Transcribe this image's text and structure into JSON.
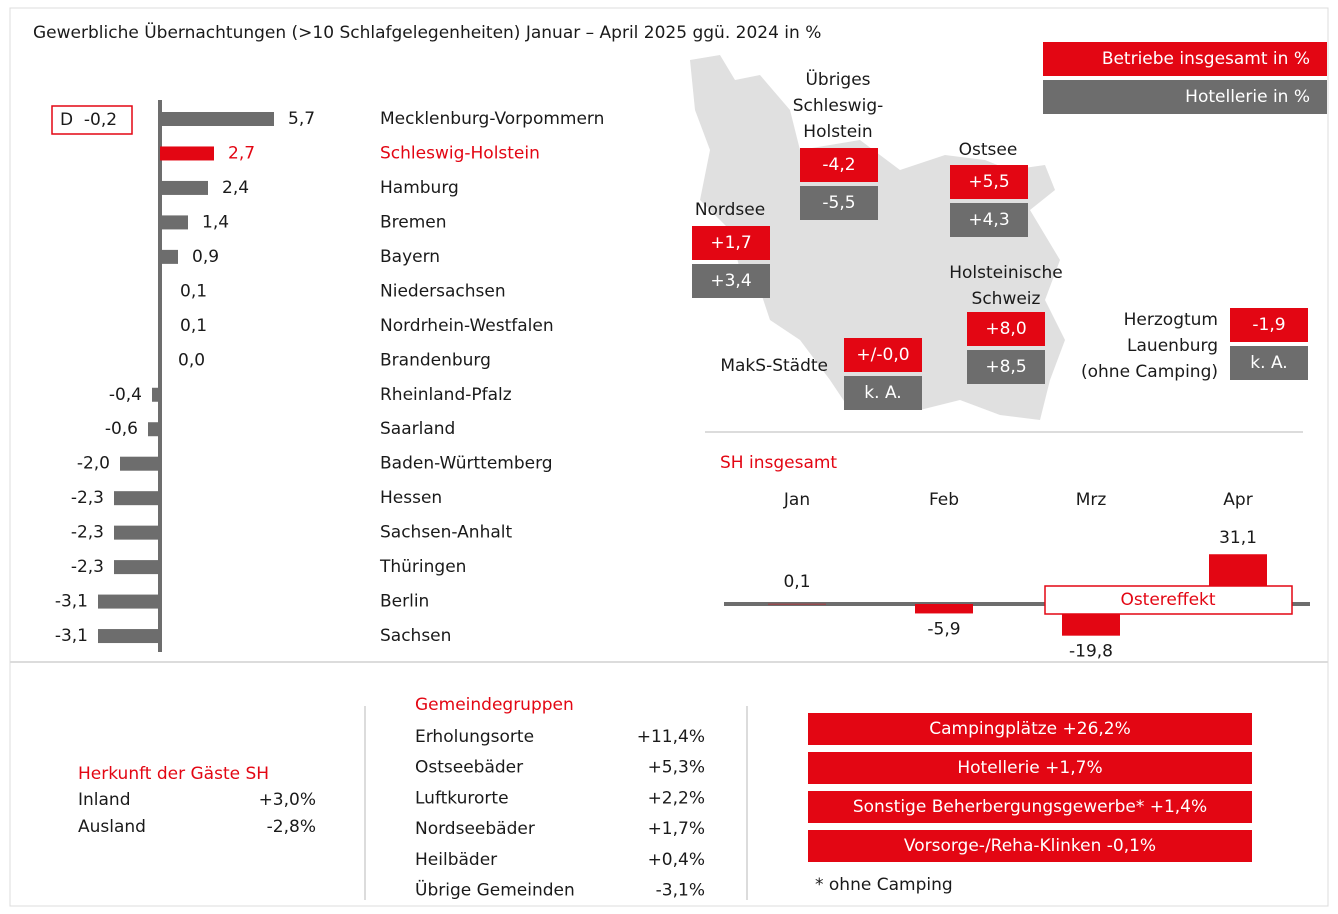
{
  "title": "Gewerbliche Übernachtungen (>10 Schlafgelegenheiten) Januar – April 2025 ggü. 2024 in %",
  "chart_data": [
    {
      "type": "hbar",
      "annotation": "D  -0,2",
      "categories": [
        "Mecklenburg-Vorpommern",
        "Schleswig-Holstein",
        "Hamburg",
        "Bremen",
        "Bayern",
        "Niedersachsen",
        "Nordrhein-Westfalen",
        "Brandenburg",
        "Rheinland-Pfalz",
        "Saarland",
        "Baden-Württemberg",
        "Hessen",
        "Sachsen-Anhalt",
        "Thüringen",
        "Berlin",
        "Sachsen"
      ],
      "values": [
        5.7,
        2.7,
        2.4,
        1.4,
        0.9,
        0.1,
        0.1,
        0.0,
        -0.4,
        -0.6,
        -2.0,
        -2.3,
        -2.3,
        -2.3,
        -3.1,
        -3.1
      ],
      "value_labels": [
        "5,7",
        "2,7",
        "2,4",
        "1,4",
        "0,9",
        "0,1",
        "0,1",
        "0,0",
        "-0,4",
        "-0,6",
        "-2,0",
        "-2,3",
        "-2,3",
        "-2,3",
        "-3,1",
        "-3,1"
      ],
      "colors": [
        "#6d6d6d",
        "#e30613",
        "#6d6d6d",
        "#6d6d6d",
        "#6d6d6d",
        "#6d6d6d",
        "#6d6d6d",
        "#6d6d6d",
        "#6d6d6d",
        "#6d6d6d",
        "#6d6d6d",
        "#6d6d6d",
        "#6d6d6d",
        "#6d6d6d",
        "#6d6d6d",
        "#6d6d6d"
      ]
    },
    {
      "type": "bar",
      "title": "SH insgesamt",
      "annotation": "Ostereffekt",
      "categories": [
        "Jan",
        "Feb",
        "Mrz",
        "Apr"
      ],
      "values": [
        0.1,
        -5.9,
        -19.8,
        31.1
      ],
      "value_labels": [
        "0,1",
        "-5,9",
        "-19,8",
        "31,1"
      ],
      "color": "#e30613"
    }
  ],
  "map": {
    "legend": [
      {
        "label": "Betriebe insgesamt in %",
        "color": "#e30613"
      },
      {
        "label": "Hotellerie in %",
        "color": "#6d6d6d"
      }
    ],
    "regions": [
      {
        "name": [
          "Übriges",
          "Schleswig-",
          "Holstein"
        ],
        "betriebe": "-4,2",
        "hotellerie": "-5,5"
      },
      {
        "name": [
          "Ostsee"
        ],
        "betriebe": "+5,5",
        "hotellerie": "+4,3"
      },
      {
        "name": [
          "Nordsee"
        ],
        "betriebe": "+1,7",
        "hotellerie": "+3,4"
      },
      {
        "name": [
          "Holsteinische",
          "Schweiz"
        ],
        "betriebe": "+8,0",
        "hotellerie": "+8,5"
      },
      {
        "name": [
          "MakS-Städte"
        ],
        "betriebe": "+/-0,0",
        "hotellerie": "k. A."
      },
      {
        "name": [
          "Herzogtum",
          "Lauenburg",
          "(ohne Camping)"
        ],
        "betriebe": "-1,9",
        "hotellerie": "k. A."
      }
    ]
  },
  "herkunft": {
    "title": "Herkunft der Gäste SH",
    "rows": [
      [
        "Inland",
        "+3,0%"
      ],
      [
        "Ausland",
        "-2,8%"
      ]
    ]
  },
  "gemeindegruppen": {
    "title": "Gemeindegruppen",
    "rows": [
      [
        "Erholungsorte",
        "+11,4%"
      ],
      [
        "Ostseebäder",
        "+5,3%"
      ],
      [
        "Luftkurorte",
        "+2,2%"
      ],
      [
        "Nordseebäder",
        "+1,7%"
      ],
      [
        "Heilbäder",
        "+0,4%"
      ],
      [
        "Übrige Gemeinden",
        "-3,1%"
      ]
    ]
  },
  "betriebsarten": {
    "items": [
      "Campingplätze +26,2%",
      "Hotellerie +1,7%",
      "Sonstige Beherbergungsgewerbe* +1,4%",
      "Vorsorge-/Reha-Klinken -0,1%"
    ],
    "footnote": "* ohne Camping"
  }
}
